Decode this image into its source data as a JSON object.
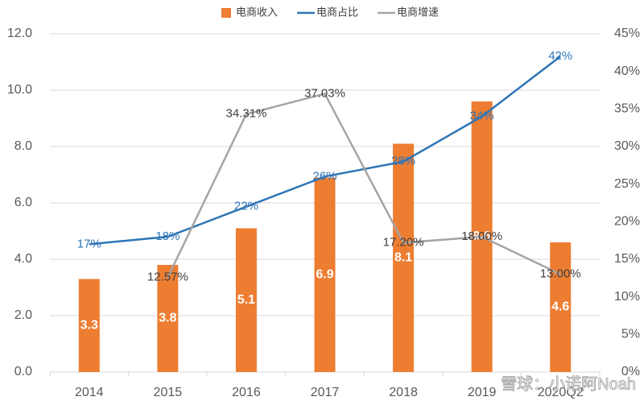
{
  "chart_data": {
    "type": "combo",
    "categories": [
      "2014",
      "2015",
      "2016",
      "2017",
      "2018",
      "2019",
      "2020Q2"
    ],
    "series": [
      {
        "name": "电商收入",
        "type": "bar",
        "color": "#ed7d31",
        "values": [
          3.3,
          3.8,
          5.1,
          6.9,
          8.1,
          9.6,
          4.6
        ]
      },
      {
        "name": "电商占比",
        "type": "line",
        "axis": "y2",
        "color": "#2e75b6",
        "values": [
          17,
          18,
          22,
          26,
          28,
          34,
          42
        ],
        "value_labels": [
          "17%",
          "18%",
          "22%",
          "26%",
          "28%",
          "34%",
          "42%"
        ]
      },
      {
        "name": "电商增速",
        "type": "line",
        "axis": "y2",
        "color": "#a5a5a5",
        "values": [
          null,
          12.57,
          34.31,
          37.03,
          17.2,
          18.0,
          13.0
        ],
        "value_labels": [
          null,
          "12.57%",
          "34.31%",
          "37.03%",
          "17.20%",
          "18.00%",
          "13.00%"
        ]
      }
    ],
    "ylim": [
      0,
      12
    ],
    "yticks": [
      {
        "value": 0,
        "label": "0.0"
      },
      {
        "value": 2,
        "label": "2.0"
      },
      {
        "value": 4,
        "label": "4.0"
      },
      {
        "value": 6,
        "label": "6.0"
      },
      {
        "value": 8,
        "label": "8.0"
      },
      {
        "value": 10,
        "label": "10.0"
      },
      {
        "value": 12,
        "label": "12.0"
      }
    ],
    "y2lim": [
      0,
      45
    ],
    "y2ticks": [
      {
        "value": 0,
        "label": "0%"
      },
      {
        "value": 5,
        "label": "5%"
      },
      {
        "value": 10,
        "label": "10%"
      },
      {
        "value": 15,
        "label": "15%"
      },
      {
        "value": 20,
        "label": "20%"
      },
      {
        "value": 25,
        "label": "25%"
      },
      {
        "value": 30,
        "label": "30%"
      },
      {
        "value": 35,
        "label": "35%"
      },
      {
        "value": 40,
        "label": "40%"
      },
      {
        "value": 45,
        "label": "45%"
      }
    ],
    "grid": true,
    "legend": "top",
    "watermark": "雪球：小诺阿Noah"
  }
}
